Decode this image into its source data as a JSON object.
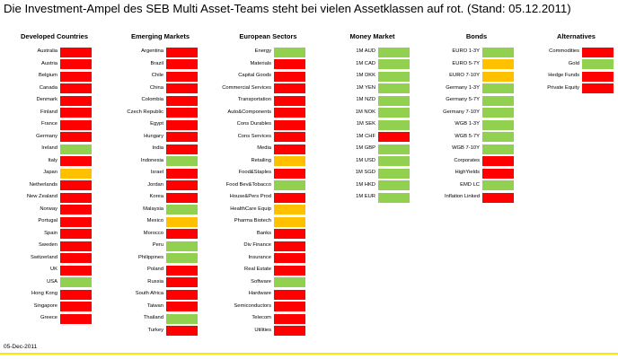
{
  "title": "Die Investment-Ampel des SEB Multi Asset-Teams steht bei vielen Assetklassen auf rot. (Stand: 05.12.2011)",
  "footer_date": "05-Dec-2011",
  "colors": {
    "red": "#ff0000",
    "yellow": "#ffc000",
    "green": "#92d050",
    "footer_rule": "#ffe500"
  },
  "chart_data": {
    "type": "table",
    "title": "Die Investment-Ampel des SEB Multi Asset-Teams steht bei vielen Assetklassen auf rot. (Stand: 05.12.2011)",
    "legend": [],
    "columns": [
      {
        "header": "Developed Countries",
        "rows": [
          {
            "label": "Australia",
            "signal": "red"
          },
          {
            "label": "Austria",
            "signal": "red"
          },
          {
            "label": "Belgium",
            "signal": "red"
          },
          {
            "label": "Canada",
            "signal": "red"
          },
          {
            "label": "Denmark",
            "signal": "red"
          },
          {
            "label": "Finland",
            "signal": "red"
          },
          {
            "label": "France",
            "signal": "red"
          },
          {
            "label": "Germany",
            "signal": "red"
          },
          {
            "label": "Ireland",
            "signal": "green"
          },
          {
            "label": "Italy",
            "signal": "red"
          },
          {
            "label": "Japan",
            "signal": "yellow"
          },
          {
            "label": "Netherlands",
            "signal": "red"
          },
          {
            "label": "New Zealand",
            "signal": "red"
          },
          {
            "label": "Norway",
            "signal": "red"
          },
          {
            "label": "Portugal",
            "signal": "red"
          },
          {
            "label": "Spain",
            "signal": "red"
          },
          {
            "label": "Sweden",
            "signal": "red"
          },
          {
            "label": "Switzerland",
            "signal": "red"
          },
          {
            "label": "UK",
            "signal": "red"
          },
          {
            "label": "USA",
            "signal": "green"
          },
          {
            "label": "Hong Kong",
            "signal": "red"
          },
          {
            "label": "Singapore",
            "signal": "red"
          },
          {
            "label": "Greece",
            "signal": "red"
          }
        ]
      },
      {
        "header": "Emerging Markets",
        "rows": [
          {
            "label": "Argentina",
            "signal": "red"
          },
          {
            "label": "Brazil",
            "signal": "red"
          },
          {
            "label": "Chile",
            "signal": "red"
          },
          {
            "label": "China",
            "signal": "red"
          },
          {
            "label": "Colombia",
            "signal": "red"
          },
          {
            "label": "Czech Republic",
            "signal": "red"
          },
          {
            "label": "Egypt",
            "signal": "red"
          },
          {
            "label": "Hungary",
            "signal": "red"
          },
          {
            "label": "India",
            "signal": "red"
          },
          {
            "label": "Indonesia",
            "signal": "green"
          },
          {
            "label": "Israel",
            "signal": "red"
          },
          {
            "label": "Jordan",
            "signal": "red"
          },
          {
            "label": "Korea",
            "signal": "red"
          },
          {
            "label": "Malaysia",
            "signal": "green"
          },
          {
            "label": "Mexico",
            "signal": "yellow"
          },
          {
            "label": "Morocco",
            "signal": "red"
          },
          {
            "label": "Peru",
            "signal": "green"
          },
          {
            "label": "Philippines",
            "signal": "green"
          },
          {
            "label": "Poland",
            "signal": "red"
          },
          {
            "label": "Russia",
            "signal": "red"
          },
          {
            "label": "South Africa",
            "signal": "red"
          },
          {
            "label": "Taiwan",
            "signal": "red"
          },
          {
            "label": "Thailand",
            "signal": "green"
          },
          {
            "label": "Turkey",
            "signal": "red"
          }
        ]
      },
      {
        "header": "European Sectors",
        "rows": [
          {
            "label": "Energy",
            "signal": "green"
          },
          {
            "label": "Materials",
            "signal": "red"
          },
          {
            "label": "Capital Goods",
            "signal": "red"
          },
          {
            "label": "Commercial Services",
            "signal": "red"
          },
          {
            "label": "Transportation",
            "signal": "red"
          },
          {
            "label": "Auto&Components",
            "signal": "red"
          },
          {
            "label": "Cons Durables",
            "signal": "red"
          },
          {
            "label": "Cons Services",
            "signal": "red"
          },
          {
            "label": "Media",
            "signal": "red"
          },
          {
            "label": "Retailing",
            "signal": "yellow"
          },
          {
            "label": "Food&Staples",
            "signal": "red"
          },
          {
            "label": "Food Bev&Tobacco",
            "signal": "green"
          },
          {
            "label": "House&Pers Prod",
            "signal": "red"
          },
          {
            "label": "HealthCare Equip",
            "signal": "yellow"
          },
          {
            "label": "Pharma Biotech",
            "signal": "yellow"
          },
          {
            "label": "Banks",
            "signal": "red"
          },
          {
            "label": "Div Finance",
            "signal": "red"
          },
          {
            "label": "Insurance",
            "signal": "red"
          },
          {
            "label": "Real Estate",
            "signal": "red"
          },
          {
            "label": "Software",
            "signal": "green"
          },
          {
            "label": "Hardware",
            "signal": "red"
          },
          {
            "label": "Semiconductors",
            "signal": "red"
          },
          {
            "label": "Telecom",
            "signal": "red"
          },
          {
            "label": "Utilities",
            "signal": "red"
          }
        ]
      },
      {
        "header": "Money Market",
        "rows": [
          {
            "label": "1M AUD",
            "signal": "green"
          },
          {
            "label": "1M CAD",
            "signal": "green"
          },
          {
            "label": "1M DKK",
            "signal": "green"
          },
          {
            "label": "1M YEN",
            "signal": "green"
          },
          {
            "label": "1M NZD",
            "signal": "green"
          },
          {
            "label": "1M NOK",
            "signal": "green"
          },
          {
            "label": "1M SEK",
            "signal": "green"
          },
          {
            "label": "1M CHF",
            "signal": "red"
          },
          {
            "label": "1M GBP",
            "signal": "green"
          },
          {
            "label": "1M USD",
            "signal": "green"
          },
          {
            "label": "1M SGD",
            "signal": "green"
          },
          {
            "label": "1M HKD",
            "signal": "green"
          },
          {
            "label": "1M EUR",
            "signal": "green"
          }
        ]
      },
      {
        "header": "Bonds",
        "rows": [
          {
            "label": "EURO 1-3Y",
            "signal": "green"
          },
          {
            "label": "EURO 5-7Y",
            "signal": "yellow"
          },
          {
            "label": "EURO 7-10Y",
            "signal": "yellow"
          },
          {
            "label": "Germany 1-3Y",
            "signal": "green"
          },
          {
            "label": "Germany 5-7Y",
            "signal": "green"
          },
          {
            "label": "Germany 7-10Y",
            "signal": "green"
          },
          {
            "label": "WGB 1-3Y",
            "signal": "green"
          },
          {
            "label": "WGB 5-7Y",
            "signal": "green"
          },
          {
            "label": "WGB 7-10Y",
            "signal": "green"
          },
          {
            "label": "Corporates",
            "signal": "red"
          },
          {
            "label": "HighYields",
            "signal": "red"
          },
          {
            "label": "EMD LC",
            "signal": "green"
          },
          {
            "label": "Inflation Linked",
            "signal": "red"
          }
        ]
      },
      {
        "header": "Alternatives",
        "rows": [
          {
            "label": "Commodities",
            "signal": "red"
          },
          {
            "label": "Gold",
            "signal": "green"
          },
          {
            "label": "Hedge Funds",
            "signal": "red"
          },
          {
            "label": "Private Equity",
            "signal": "red"
          }
        ]
      }
    ]
  }
}
